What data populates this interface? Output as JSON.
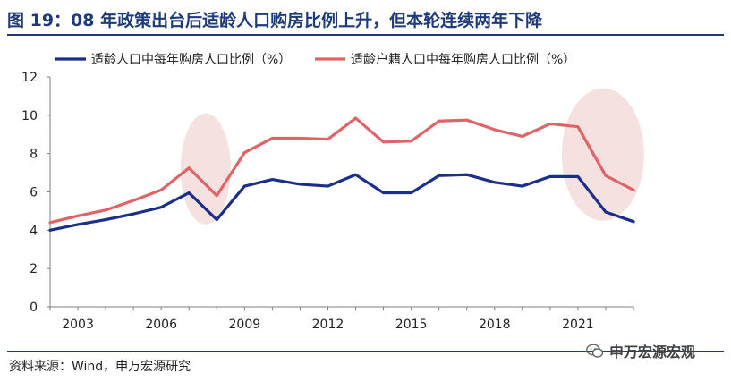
{
  "title": "图 19：08 年政策出台后适龄人口购房比例上升，但本轮连续两年下降",
  "source": "资料来源：Wind，申万宏源研究",
  "watermark": "申万宏源宏观",
  "watermark_icon": "wechat-icon",
  "colors": {
    "series1": "#1a2f8a",
    "series2": "#e06366",
    "highlight": "#f4dcdc",
    "title": "#1f3b7a"
  },
  "chart_data": {
    "type": "line",
    "x": [
      2002,
      2003,
      2004,
      2005,
      2006,
      2007,
      2008,
      2009,
      2010,
      2011,
      2012,
      2013,
      2014,
      2015,
      2016,
      2017,
      2018,
      2019,
      2020,
      2021,
      2022,
      2023
    ],
    "series": [
      {
        "name": "适龄人口中每年购房人口比例（%）",
        "values": [
          4.0,
          4.3,
          4.55,
          4.85,
          5.2,
          5.95,
          4.55,
          6.3,
          6.65,
          6.4,
          6.3,
          6.9,
          5.95,
          5.95,
          6.85,
          6.9,
          6.5,
          6.3,
          6.8,
          6.8,
          4.95,
          4.45
        ]
      },
      {
        "name": "适龄户籍人口中每年购房人口比例（%）",
        "values": [
          4.4,
          4.75,
          5.05,
          5.55,
          6.1,
          7.25,
          5.8,
          8.05,
          8.8,
          8.8,
          8.75,
          9.85,
          8.6,
          8.65,
          9.7,
          9.75,
          9.25,
          8.9,
          9.55,
          9.4,
          6.85,
          6.1
        ]
      }
    ],
    "xticks": [
      "2003",
      "2006",
      "2009",
      "2012",
      "2015",
      "2018",
      "2021"
    ],
    "yticks": [
      "0",
      "2",
      "4",
      "6",
      "8",
      "10",
      "12"
    ],
    "ylim": [
      0,
      12
    ],
    "xlim": [
      2002,
      2023
    ],
    "legend": "top",
    "grid": false,
    "highlights": [
      {
        "x": 2007.6,
        "y": 7.2
      },
      {
        "x": 2021.9,
        "y": 7.95
      }
    ]
  }
}
